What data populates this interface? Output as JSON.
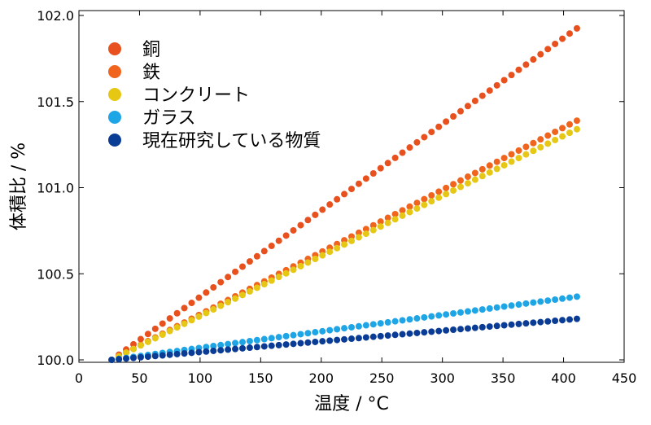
{
  "chart_data": {
    "type": "scatter",
    "xlabel": "温度 / °C",
    "ylabel": "体積比 / %",
    "xlim": [
      0,
      450
    ],
    "ylim": [
      100.0,
      102.0
    ],
    "x_ticks": [
      "0",
      "50",
      "100",
      "150",
      "200",
      "250",
      "300",
      "350",
      "400",
      "450"
    ],
    "y_ticks": [
      "100.0",
      "100.5",
      "101.0",
      "101.5",
      "102.0"
    ],
    "grid": false,
    "legend_position": "top-left",
    "series": [
      {
        "name": "銅",
        "color": "#e8501e",
        "x_start": 27,
        "x_end": 414,
        "x_step": 6,
        "y_start": 100.0,
        "y_end": 101.94
      },
      {
        "name": "鉄",
        "color": "#f0641e",
        "x_start": 27,
        "x_end": 414,
        "x_step": 6,
        "y_start": 100.0,
        "y_end": 101.4
      },
      {
        "name": "コンクリート",
        "color": "#e6c814",
        "x_start": 27,
        "x_end": 414,
        "x_step": 6,
        "y_start": 100.0,
        "y_end": 101.35
      },
      {
        "name": "ガラス",
        "color": "#1ea5e6",
        "x_start": 27,
        "x_end": 414,
        "x_step": 6,
        "y_start": 100.0,
        "y_end": 100.37
      },
      {
        "name": "現在研究している物質",
        "color": "#0a3c96",
        "x_start": 27,
        "x_end": 414,
        "x_step": 6,
        "y_start": 100.0,
        "y_end": 100.24
      }
    ]
  }
}
